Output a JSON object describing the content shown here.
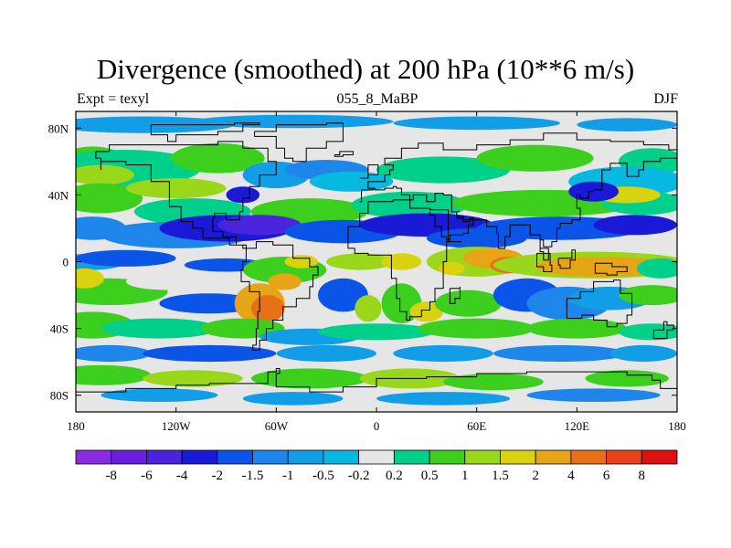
{
  "figure": {
    "title": "Divergence (smoothed) at 200 hPa (10**6 m/s)",
    "left_label": "Expt = texyl",
    "center_label": "055_8_MaBP",
    "right_label": "DJF"
  },
  "map": {
    "lon_range": [
      -180,
      180
    ],
    "lat_range": [
      -90,
      90
    ],
    "x_ticks": [
      "180",
      "120W",
      "60W",
      "0",
      "60E",
      "120E",
      "180"
    ],
    "y_ticks": [
      "80N",
      "40N",
      "0",
      "40S",
      "80S"
    ]
  },
  "colorbar": {
    "labels": [
      "-8",
      "-6",
      "-4",
      "-2",
      "-1.5",
      "-1",
      "-0.5",
      "-0.2",
      "0.2",
      "0.5",
      "1",
      "1.5",
      "2",
      "4",
      "6",
      "8"
    ],
    "colors": [
      "#8a2be2",
      "#6a1fe0",
      "#4a23dc",
      "#1a1ad6",
      "#0a55e8",
      "#1e86ea",
      "#129ee6",
      "#07b8e0",
      "#e6e6e6",
      "#00d08a",
      "#3ccf1e",
      "#9ad61a",
      "#d8d20f",
      "#e6a417",
      "#e87017",
      "#e8421a",
      "#e01010"
    ]
  },
  "chart_data": {
    "type": "heatmap",
    "title": "Divergence (smoothed) at 200 hPa (10**6 m/s)",
    "subtitle": "055_8_MaBP",
    "x_ticks": [
      "180",
      "120W",
      "60W",
      "0",
      "60E",
      "120E",
      "180"
    ],
    "y_ticks": [
      "80N",
      "40N",
      "0",
      "40S",
      "80S"
    ],
    "levels": [
      -8,
      -6,
      -4,
      -2,
      -1.5,
      -1,
      -0.5,
      -0.2,
      0.2,
      0.5,
      1,
      1.5,
      2,
      4,
      6,
      8
    ]
  }
}
